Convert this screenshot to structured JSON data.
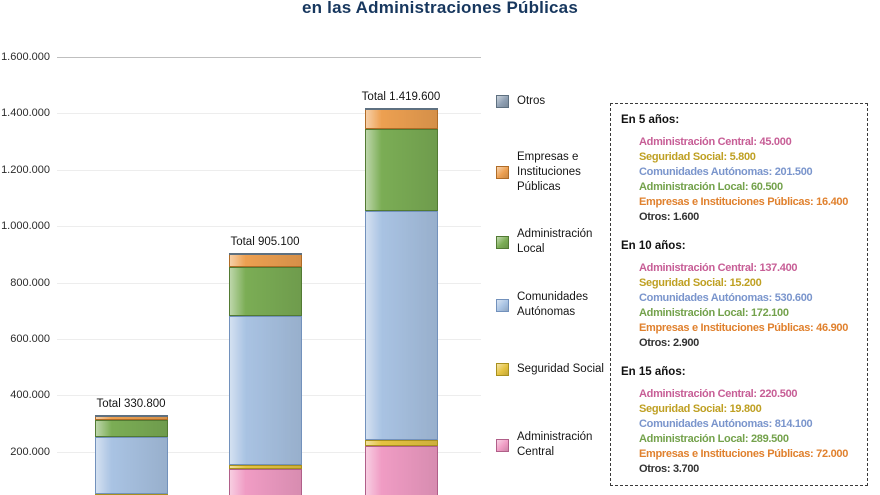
{
  "title": "en las Administraciones Públicas",
  "chart_data": {
    "type": "bar",
    "stacked": true,
    "title": "en las Administraciones Públicas",
    "categories": [
      "En 5 años",
      "En 10 años",
      "En 15 años"
    ],
    "series": [
      {
        "name": "Administración Central",
        "color": "#F09CC4",
        "border": "#B05F89",
        "values": [
          45000,
          137400,
          220500
        ]
      },
      {
        "name": "Seguridad Social",
        "color": "#E5C341",
        "border": "#A8901E",
        "values": [
          5800,
          15200,
          19800
        ]
      },
      {
        "name": "Comunidades Autónomas",
        "color": "#A9C3E3",
        "border": "#7291BC",
        "values": [
          201500,
          530600,
          814100
        ]
      },
      {
        "name": "Administración Local",
        "color": "#7BAD55",
        "border": "#527A33",
        "values": [
          60500,
          172100,
          289500
        ]
      },
      {
        "name": "Empresas e Instituciones Públicas",
        "color": "#EDA051",
        "border": "#B06C27",
        "values": [
          16400,
          46900,
          72000
        ]
      },
      {
        "name": "Otros",
        "color": "#8FA0B3",
        "border": "#5E7080",
        "values": [
          1600,
          2900,
          3700
        ]
      }
    ],
    "totals": [
      330800,
      905100,
      1419600
    ],
    "total_labels": [
      "Total 330.800",
      "Total 905.100",
      "Total 1.419.600"
    ],
    "y_axis": {
      "min": 0,
      "max": 1600000,
      "tick_labels": [
        "1.600.000",
        "1.400.000",
        "1.200.000",
        "1.000.000",
        "800.000",
        "600.000",
        "400.000",
        "200.000"
      ],
      "tick_values": [
        1600000,
        1400000,
        1200000,
        1000000,
        800000,
        600000,
        400000,
        200000
      ]
    },
    "legend_order": [
      "Otros",
      "Empresas e Instituciones Públicas",
      "Administración Local",
      "Comunidades Autónomas",
      "Seguridad Social",
      "Administración Central"
    ],
    "legend_position": "right"
  },
  "panel": {
    "sections": [
      {
        "header": "En 5 años:",
        "items": [
          {
            "text": "Administración Central: 45.000",
            "color": "#C75E96"
          },
          {
            "text": "Seguridad Social: 5.800",
            "color": "#BFA023"
          },
          {
            "text": "Comunidades Autónomas: 201.500",
            "color": "#7A95CC"
          },
          {
            "text": "Administración Local: 60.500",
            "color": "#74A24C"
          },
          {
            "text": "Empresas e Instituciones Públicas: 16.400",
            "color": "#E0812E"
          },
          {
            "text": "Otros: 1.600",
            "color": "#333333"
          }
        ]
      },
      {
        "header": "En 10 años:",
        "items": [
          {
            "text": "Administración Central: 137.400",
            "color": "#C75E96"
          },
          {
            "text": "Seguridad Social: 15.200",
            "color": "#BFA023"
          },
          {
            "text": "Comunidades Autónomas: 530.600",
            "color": "#7A95CC"
          },
          {
            "text": "Administración Local: 172.100",
            "color": "#74A24C"
          },
          {
            "text": "Empresas e Instituciones Públicas: 46.900",
            "color": "#E0812E"
          },
          {
            "text": "Otros: 2.900",
            "color": "#333333"
          }
        ]
      },
      {
        "header": "En 15 años:",
        "items": [
          {
            "text": "Administración Central: 220.500",
            "color": "#C75E96"
          },
          {
            "text": "Seguridad Social: 19.800",
            "color": "#BFA023"
          },
          {
            "text": "Comunidades Autónomas: 814.100",
            "color": "#7A95CC"
          },
          {
            "text": "Administración Local: 289.500",
            "color": "#74A24C"
          },
          {
            "text": "Empresas e Instituciones Públicas: 72.000",
            "color": "#E0812E"
          },
          {
            "text": "Otros: 3.700",
            "color": "#333333"
          }
        ]
      }
    ]
  }
}
